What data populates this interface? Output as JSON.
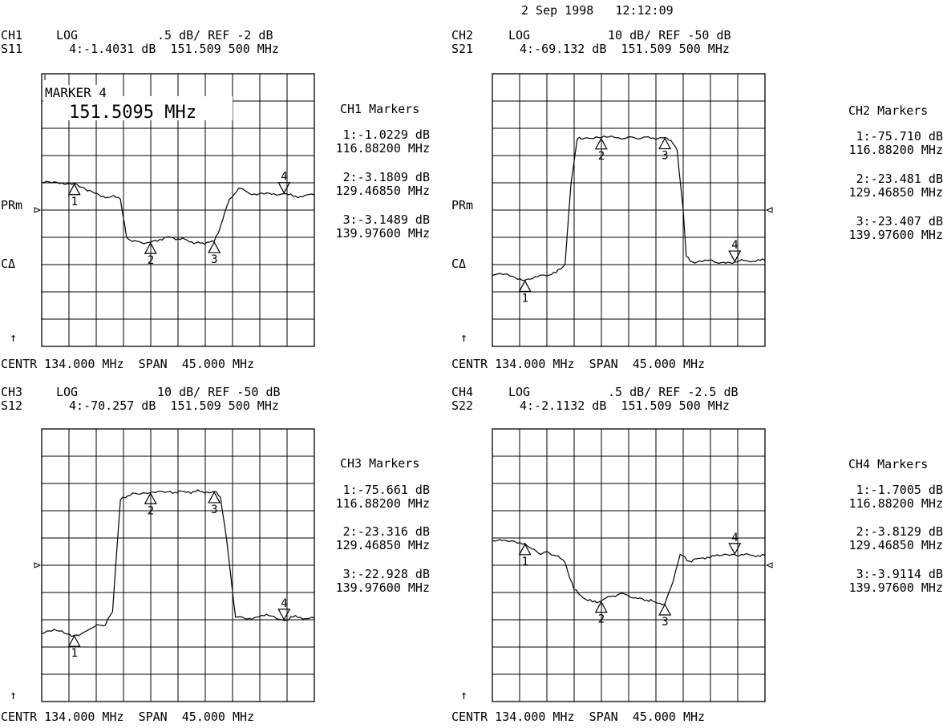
{
  "timestamp": "2 Sep 1998   12:12:09",
  "channels": [
    {
      "id": "CH1",
      "header1_a": "CH1",
      "header1_b": "LOG",
      "header1_c": ".5 dB/ REF -2 dB",
      "header2_a": "S11",
      "header2_b": "4:-1.4031 dB  151.509 500 MHz",
      "footer": "CENTR 134.000 MHz  SPAN  45.000 MHz",
      "markers_title": "CH1 Markers",
      "markers": [
        {
          "val": "1:-1.0229 dB",
          "freq": "116.88200 MHz"
        },
        {
          "val": "2:-3.1809 dB",
          "freq": "129.46850 MHz"
        },
        {
          "val": "3:-3.1489 dB",
          "freq": "139.97600 MHz"
        }
      ],
      "marker_box_line1": "MARKER 4",
      "marker_box_line2": "151.5095 MHz",
      "left_labels": [
        "PRm",
        "CΔ"
      ],
      "up_arrow": "↑"
    },
    {
      "id": "CH2",
      "header1_a": "CH2",
      "header1_b": "LOG",
      "header1_c": "10 dB/ REF -50 dB",
      "header2_a": "S21",
      "header2_b": "4:-69.132 dB  151.509 500 MHz",
      "footer": "CENTR 134.000 MHz  SPAN  45.000 MHz",
      "markers_title": "CH2 Markers",
      "markers": [
        {
          "val": "1:-75.710 dB",
          "freq": "116.88200 MHz"
        },
        {
          "val": "2:-23.481 dB",
          "freq": "129.46850 MHz"
        },
        {
          "val": "3:-23.407 dB",
          "freq": "139.97600 MHz"
        }
      ],
      "left_labels": [
        "PRm",
        "CΔ"
      ],
      "up_arrow": "↑"
    },
    {
      "id": "CH3",
      "header1_a": "CH3",
      "header1_b": "LOG",
      "header1_c": "10 dB/ REF -50 dB",
      "header2_a": "S12",
      "header2_b": "4:-70.257 dB  151.509 500 MHz",
      "footer": "CENTR 134.000 MHz  SPAN  45.000 MHz",
      "markers_title": "CH3 Markers",
      "markers": [
        {
          "val": "1:-75.661 dB",
          "freq": "116.88200 MHz"
        },
        {
          "val": "2:-23.316 dB",
          "freq": "129.46850 MHz"
        },
        {
          "val": "3:-22.928 dB",
          "freq": "139.97600 MHz"
        }
      ],
      "up_arrow": "↑"
    },
    {
      "id": "CH4",
      "header1_a": "CH4",
      "header1_b": "LOG",
      "header1_c": ".5 dB/ REF -2.5 dB",
      "header2_a": "S22",
      "header2_b": "4:-2.1132 dB  151.509 500 MHz",
      "footer": "CENTR 134.000 MHz  SPAN  45.000 MHz",
      "markers_title": "CH4 Markers",
      "markers": [
        {
          "val": "1:-1.7005 dB",
          "freq": "116.88200 MHz"
        },
        {
          "val": "2:-3.8129 dB",
          "freq": "129.46850 MHz"
        },
        {
          "val": "3:-3.9114 dB",
          "freq": "139.97600 MHz"
        }
      ],
      "up_arrow": "↑"
    }
  ],
  "chart_data": [
    {
      "type": "line",
      "channel": "CH1",
      "param": "S11",
      "x_center_mhz": 134.0,
      "x_span_mhz": 45.0,
      "xlim": [
        111.5,
        156.5
      ],
      "y_ref_db": -2,
      "y_scale_db_per_div": 0.5,
      "ylim": [
        -7,
        3
      ],
      "grid": true,
      "series": [
        {
          "x": [
            111.5,
            114,
            116.88,
            119,
            121,
            122,
            123,
            124.5,
            125.5,
            126.5,
            128,
            129.47,
            131,
            132.5,
            134,
            135.5,
            137,
            138,
            139.98,
            141,
            142.5,
            144,
            145.5,
            147,
            149,
            151.51,
            153,
            156.5
          ],
          "y": [
            -1.0,
            -0.98,
            -1.02,
            -1.3,
            -1.45,
            -1.55,
            -1.5,
            -1.6,
            -3.0,
            -3.15,
            -3.2,
            -3.18,
            -3.08,
            -2.98,
            -3.05,
            -3.1,
            -3.2,
            -3.2,
            -3.15,
            -2.6,
            -1.6,
            -1.2,
            -1.35,
            -1.45,
            -1.38,
            -1.4,
            -1.5,
            -1.45
          ]
        }
      ],
      "markers": [
        {
          "n": 1,
          "x": 116.882,
          "y": -1.0229
        },
        {
          "n": 2,
          "x": 129.4685,
          "y": -3.1809
        },
        {
          "n": 3,
          "x": 139.976,
          "y": -3.1489
        },
        {
          "n": 4,
          "x": 151.5095,
          "y": -1.4031
        }
      ]
    },
    {
      "type": "line",
      "channel": "CH2",
      "param": "S21",
      "x_center_mhz": 134.0,
      "x_span_mhz": 45.0,
      "xlim": [
        111.5,
        156.5
      ],
      "y_ref_db": -50,
      "y_scale_db_per_div": 10,
      "ylim": [
        -100,
        0
      ],
      "grid": true,
      "series": [
        {
          "x": [
            111.5,
            114,
            116.88,
            119,
            122,
            123.5,
            124.5,
            125.5,
            127,
            129.47,
            132,
            135,
            138,
            139.98,
            141,
            142,
            143,
            143.5,
            144.5,
            147,
            150,
            151.51,
            153,
            156.5
          ],
          "y": [
            -74,
            -73.5,
            -75.7,
            -74.5,
            -73,
            -70,
            -40,
            -24,
            -23.5,
            -23.5,
            -23.5,
            -23.5,
            -23.5,
            -23.4,
            -24.5,
            -28,
            -50,
            -67,
            -69,
            -68.5,
            -69.5,
            -69.1,
            -68.5,
            -68.6
          ]
        }
      ],
      "markers": [
        {
          "n": 1,
          "x": 116.882,
          "y": -75.71
        },
        {
          "n": 2,
          "x": 129.4685,
          "y": -23.481
        },
        {
          "n": 3,
          "x": 139.976,
          "y": -23.407
        },
        {
          "n": 4,
          "x": 151.5095,
          "y": -69.132
        }
      ]
    },
    {
      "type": "line",
      "channel": "CH3",
      "param": "S12",
      "x_center_mhz": 134.0,
      "x_span_mhz": 45.0,
      "xlim": [
        111.5,
        156.5
      ],
      "y_ref_db": -50,
      "y_scale_db_per_div": 10,
      "ylim": [
        -100,
        0
      ],
      "grid": true,
      "series": [
        {
          "x": [
            111.5,
            114,
            116.88,
            119,
            121,
            122,
            123.2,
            124.5,
            126.5,
            129.47,
            132,
            135,
            138,
            139.98,
            141,
            142,
            143.5,
            145,
            147,
            149,
            151.51,
            153,
            156.5
          ],
          "y": [
            -75,
            -74,
            -75.7,
            -74,
            -72,
            -72,
            -67,
            -26,
            -23.5,
            -23.3,
            -23.2,
            -23,
            -23,
            -22.9,
            -25,
            -40,
            -69,
            -69.5,
            -69,
            -68.5,
            -70.3,
            -69,
            -69.5
          ]
        }
      ],
      "markers": [
        {
          "n": 1,
          "x": 116.882,
          "y": -75.661
        },
        {
          "n": 2,
          "x": 129.4685,
          "y": -23.316
        },
        {
          "n": 3,
          "x": 139.976,
          "y": -22.928
        },
        {
          "n": 4,
          "x": 151.5095,
          "y": -70.257
        }
      ]
    },
    {
      "type": "line",
      "channel": "CH4",
      "param": "S22",
      "x_center_mhz": 134.0,
      "x_span_mhz": 45.0,
      "xlim": [
        111.5,
        156.5
      ],
      "y_ref_db": -2.5,
      "y_scale_db_per_div": 0.5,
      "ylim": [
        -7.5,
        2.5
      ],
      "grid": true,
      "series": [
        {
          "x": [
            111.5,
            114,
            116.88,
            118,
            119.5,
            120.5,
            122,
            123.5,
            125,
            126.5,
            128,
            129.47,
            131,
            132.5,
            134,
            135.5,
            137,
            138,
            139.98,
            141,
            142.5,
            144,
            145.5,
            147,
            149,
            151.51,
            153,
            156.5
          ],
          "y": [
            -1.6,
            -1.62,
            -1.7,
            -1.9,
            -2.1,
            -2.0,
            -2.15,
            -2.4,
            -3.4,
            -3.7,
            -3.85,
            -3.81,
            -3.65,
            -3.55,
            -3.62,
            -3.72,
            -3.78,
            -3.82,
            -3.91,
            -3.3,
            -2.1,
            -2.35,
            -2.25,
            -2.2,
            -2.15,
            -2.11,
            -2.12,
            -2.14
          ]
        }
      ],
      "markers": [
        {
          "n": 1,
          "x": 116.882,
          "y": -1.7005
        },
        {
          "n": 2,
          "x": 129.4685,
          "y": -3.8129
        },
        {
          "n": 3,
          "x": 139.976,
          "y": -3.9114
        },
        {
          "n": 4,
          "x": 151.5095,
          "y": -2.1132
        }
      ]
    }
  ]
}
